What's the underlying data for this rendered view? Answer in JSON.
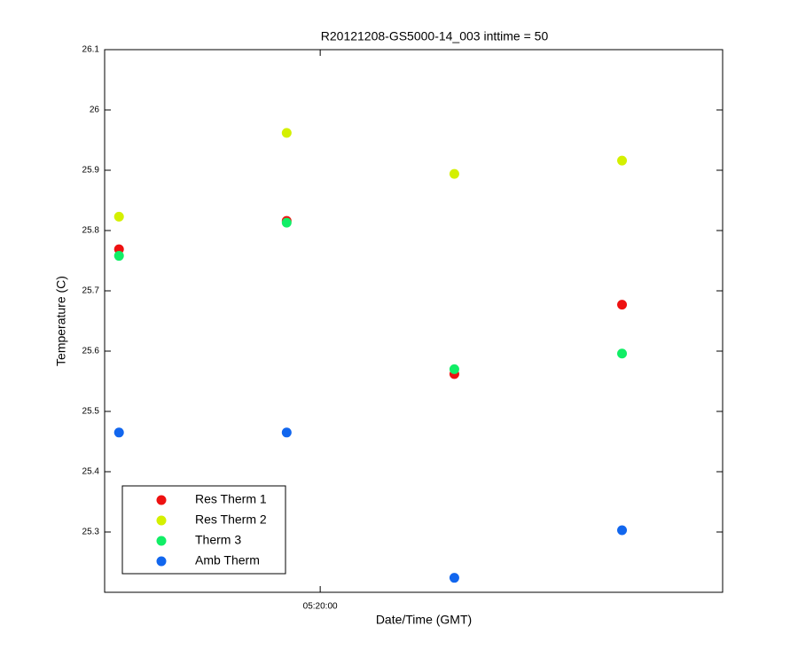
{
  "chart_data": {
    "type": "scatter",
    "title": "R20121208-GS5000-14_003 inttime = 50",
    "x_label": "Date/Time (GMT)",
    "y_label": "Temperature (C)",
    "x": [
      "05:18:36",
      "05:19:46",
      "05:20:56",
      "05:22:06"
    ],
    "xlim": [
      "05:18:30",
      "05:22:48"
    ],
    "xticks": [
      "05:20:00"
    ],
    "ylim": [
      25.2,
      26.1
    ],
    "yticks": [
      25.3,
      25.4,
      25.5,
      25.6,
      25.7,
      25.8,
      25.9,
      26,
      26.1
    ],
    "legend": "lower left",
    "series": [
      {
        "name": "Res Therm 1",
        "color": "#ee1111",
        "values": [
          25.769,
          25.816,
          25.562,
          25.677
        ]
      },
      {
        "name": "Res Therm 2",
        "color": "#d4f000",
        "values": [
          25.823,
          25.962,
          25.894,
          25.916
        ]
      },
      {
        "name": "Therm 3",
        "color": "#11ee66",
        "values": [
          25.758,
          25.813,
          25.57,
          25.596
        ]
      },
      {
        "name": "Amb Therm",
        "color": "#1166ee",
        "values": [
          25.465,
          25.465,
          25.224,
          25.303
        ]
      }
    ]
  }
}
